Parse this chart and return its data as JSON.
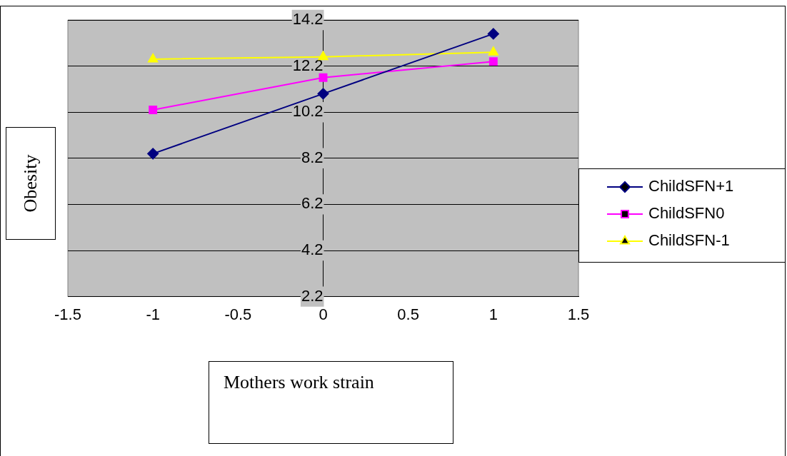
{
  "chart_data": {
    "type": "line",
    "xlabel": "Mothers work strain",
    "ylabel": "Obesity",
    "x": [
      -1,
      0,
      1
    ],
    "series": [
      {
        "name": "ChildSFN+1",
        "color": "#000080",
        "marker": "diamond",
        "values": [
          8.4,
          11.0,
          13.6
        ]
      },
      {
        "name": "ChildSFN0",
        "color": "#ff00ff",
        "marker": "square",
        "values": [
          10.3,
          11.7,
          12.4
        ]
      },
      {
        "name": "ChildSFN-1",
        "color": "#ffff00",
        "marker": "triangle",
        "values": [
          12.5,
          12.6,
          12.8
        ]
      }
    ],
    "xlim": [
      -1.5,
      1.5
    ],
    "xticks": [
      -1.5,
      -1,
      -0.5,
      0,
      0.5,
      1,
      1.5
    ],
    "ylim": [
      2.2,
      14.2
    ],
    "yticks": [
      2.2,
      4.2,
      6.2,
      8.2,
      10.2,
      12.2,
      14.2
    ],
    "grid": "y",
    "legend": "right",
    "line_style": "solid"
  }
}
